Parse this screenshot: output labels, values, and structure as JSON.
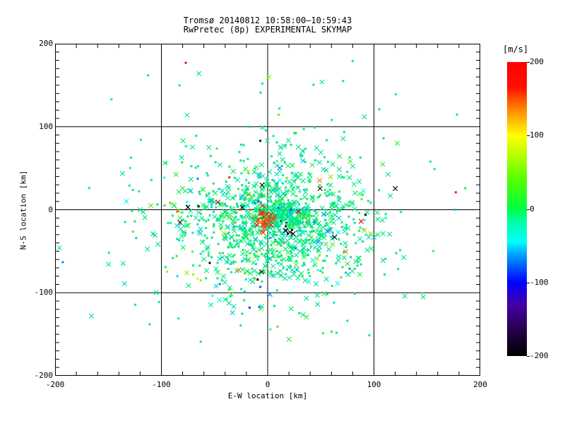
{
  "chart_data": {
    "type": "scatter",
    "title": "Tromsø 20140812 10:58:00–10:59:43",
    "subtitle": "RwPretec (8p) EXPERIMENTAL SKYMAP",
    "xlabel": "E-W location [km]",
    "ylabel": "N-S location [km]",
    "xlim": [
      -200,
      200
    ],
    "ylim": [
      -200,
      200
    ],
    "x_ticks": [
      -200,
      -100,
      0,
      100,
      200
    ],
    "y_ticks": [
      200,
      100,
      0,
      -100,
      -200
    ],
    "x_minor_step": 20,
    "y_minor_step": 10,
    "grid_lines": [
      -100,
      0,
      100
    ],
    "grid": "on",
    "marker": "x",
    "colorbar": {
      "label": "[m/s]",
      "ticks": [
        200,
        100,
        0,
        -100,
        -200
      ],
      "min": -200,
      "max": 200,
      "stops": [
        {
          "v": -200,
          "c": "#000000"
        },
        {
          "v": -160,
          "c": "#2B0057"
        },
        {
          "v": -130,
          "c": "#4400A8"
        },
        {
          "v": -100,
          "c": "#0000FF"
        },
        {
          "v": -60,
          "c": "#00AAFF"
        },
        {
          "v": -45,
          "c": "#00FFFF"
        },
        {
          "v": -15,
          "c": "#00FF99"
        },
        {
          "v": 0,
          "c": "#00FF44"
        },
        {
          "v": 40,
          "c": "#55FF00"
        },
        {
          "v": 75,
          "c": "#BBFF00"
        },
        {
          "v": 100,
          "c": "#FFFF00"
        },
        {
          "v": 135,
          "c": "#FF8800"
        },
        {
          "v": 165,
          "c": "#FF1100"
        },
        {
          "v": 200,
          "c": "#FF0000"
        }
      ]
    },
    "cloud_palette": [
      [
        "#00E97F",
        34
      ],
      [
        "#00E299",
        16
      ],
      [
        "#00F55C",
        14
      ],
      [
        "#16DFAC",
        9
      ],
      [
        "#00D4C4",
        6
      ],
      [
        "#33EA3E",
        5
      ],
      [
        "#55E830",
        3
      ],
      [
        "#00FFFF",
        2
      ],
      [
        "#00C8E8",
        2
      ],
      [
        "#0088FF",
        1
      ],
      [
        "#99E800",
        1
      ],
      [
        "#000000",
        0.6
      ],
      [
        "#FF7700",
        0.4
      ]
    ],
    "red_palette": [
      [
        "#FF2A00",
        5
      ],
      [
        "#FF4400",
        3
      ],
      [
        "#FF6600",
        2
      ],
      [
        "#E61A00",
        2
      ]
    ],
    "clusters": [
      {
        "name": "main-cloud",
        "count": 1050,
        "cx": 8,
        "cy": -15,
        "sx": 46,
        "sy": 42,
        "seed": 1234,
        "palette": "cloud_palette",
        "lg_ratio": 0.45
      },
      {
        "name": "dense-core",
        "count": 200,
        "cx": 15,
        "cy": -8,
        "sx": 13,
        "sy": 9,
        "seed": 77,
        "palette": "cloud_palette",
        "lg_ratio": 0.5
      },
      {
        "name": "halo",
        "count": 130,
        "cx": 0,
        "cy": -12,
        "sx": 88,
        "sy": 80,
        "seed": 99,
        "palette": "cloud_palette",
        "lg_ratio": 0.3
      },
      {
        "name": "red-patch",
        "count": 32,
        "cx": -3,
        "cy": -12,
        "sx": 4.5,
        "sy": 7,
        "seed": 55,
        "palette": "red_palette",
        "lg_ratio": 0.7
      }
    ],
    "notable_points": [
      {
        "x": -77,
        "y": 177,
        "c": "#EE0000",
        "s": "sm"
      },
      {
        "x": 1,
        "y": 160,
        "c": "#88EE00",
        "s": "lg"
      },
      {
        "x": -5,
        "y": 152,
        "c": "#00E6A0",
        "s": "sm"
      },
      {
        "x": -147,
        "y": 133,
        "c": "#00EB7D",
        "s": "sm"
      },
      {
        "x": 11,
        "y": 122,
        "c": "#00EB7D",
        "s": "sm"
      },
      {
        "x": -5,
        "y": 99,
        "c": "#00DFA5",
        "s": "lg"
      },
      {
        "x": 80,
        "y": 179,
        "c": "#00EB7D",
        "s": "sm"
      },
      {
        "x": 51,
        "y": 154,
        "c": "#00EB7D",
        "s": "lg"
      },
      {
        "x": 71,
        "y": 155,
        "c": "#00EB7D",
        "s": "sm"
      },
      {
        "x": 105,
        "y": 121,
        "c": "#00EB7D",
        "s": "sm"
      },
      {
        "x": 91,
        "y": 112,
        "c": "#00E59A",
        "s": "lg"
      },
      {
        "x": 122,
        "y": 80,
        "c": "#22EE22",
        "s": "lg"
      },
      {
        "x": 153,
        "y": 58,
        "c": "#00EB7D",
        "s": "sm"
      },
      {
        "x": 157,
        "y": 49,
        "c": "#00EB7D",
        "s": "sm"
      },
      {
        "x": 177,
        "y": 21,
        "c": "#FF0000",
        "s": "sm"
      },
      {
        "x": 176,
        "y": 0,
        "c": "#00CFEE",
        "s": "sm"
      },
      {
        "x": -120,
        "y": 0,
        "c": "#00EB7D",
        "s": "lg"
      },
      {
        "x": -110,
        "y": 5,
        "c": "#55E830",
        "s": "lg"
      },
      {
        "x": -97,
        "y": 5,
        "c": "#33E060",
        "s": "sm"
      },
      {
        "x": -90,
        "y": 7,
        "c": "#AAE000",
        "s": "lg"
      },
      {
        "x": -75,
        "y": 3,
        "c": "#000000",
        "s": "lg"
      },
      {
        "x": -65,
        "y": 4,
        "c": "#000000",
        "s": "sm"
      },
      {
        "x": -85,
        "y": -2,
        "c": "#FF5500",
        "s": "sm"
      },
      {
        "x": -47,
        "y": 9,
        "c": "#CC0000",
        "s": "lg"
      },
      {
        "x": -26,
        "y": 0,
        "c": "#FF4400",
        "s": "sm"
      },
      {
        "x": -16,
        "y": 0,
        "c": "#FF6600",
        "s": "sm"
      },
      {
        "x": 29,
        "y": -2,
        "c": "#BB0000",
        "s": "lg"
      },
      {
        "x": -125,
        "y": -14,
        "c": "#00E983",
        "s": "sm"
      },
      {
        "x": -108,
        "y": -29,
        "c": "#00E070",
        "s": "lg"
      },
      {
        "x": -196,
        "y": -46,
        "c": "#00EB7D",
        "s": "lg"
      },
      {
        "x": -63,
        "y": -53,
        "c": "#00E0DD",
        "s": "sm"
      },
      {
        "x": -45,
        "y": -59,
        "c": "#00D8C8",
        "s": "lg"
      },
      {
        "x": -76,
        "y": -76,
        "c": "#AAEE00",
        "s": "lg"
      },
      {
        "x": -70,
        "y": -78,
        "c": "#99EE00",
        "s": "sm"
      },
      {
        "x": -66,
        "y": -83,
        "c": "#DDEE00",
        "s": "sm"
      },
      {
        "x": -63,
        "y": -85,
        "c": "#88EE00",
        "s": "sm"
      },
      {
        "x": -85,
        "y": -80,
        "c": "#00D8E8",
        "s": "sm"
      },
      {
        "x": -12,
        "y": 8,
        "c": "#0077FF",
        "s": "sm"
      },
      {
        "x": -9,
        "y": 10,
        "c": "#7733CC",
        "s": "sm"
      },
      {
        "x": 10,
        "y": 2,
        "c": "#2255FF",
        "s": "sm"
      },
      {
        "x": 22,
        "y": 0,
        "c": "#0033CC",
        "s": "sm"
      },
      {
        "x": -7,
        "y": 83,
        "c": "#000000",
        "s": "sm"
      },
      {
        "x": -36,
        "y": 39,
        "c": "#EE2200",
        "s": "sm"
      },
      {
        "x": -18,
        "y": 47,
        "c": "#DDEE00",
        "s": "sm"
      },
      {
        "x": -17,
        "y": 18,
        "c": "#FF8800",
        "s": "sm"
      },
      {
        "x": -8,
        "y": 19,
        "c": "#88EE00",
        "s": "sm"
      },
      {
        "x": 33,
        "y": 59,
        "c": "#00BBFF",
        "s": "lg"
      },
      {
        "x": 17,
        "y": -25,
        "c": "#000000",
        "s": "lg"
      },
      {
        "x": 21,
        "y": -27,
        "c": "#000000",
        "s": "lg"
      },
      {
        "x": 24,
        "y": -29,
        "c": "#000000",
        "s": "lg"
      },
      {
        "x": 19,
        "y": -29,
        "c": "#000000",
        "s": "sm"
      },
      {
        "x": 23,
        "y": -24,
        "c": "#000000",
        "s": "sm"
      },
      {
        "x": 17,
        "y": -20,
        "c": "#000000",
        "s": "sm"
      },
      {
        "x": 88,
        "y": -14,
        "c": "#EE0000",
        "s": "lg"
      },
      {
        "x": 63,
        "y": -33,
        "c": "#000000",
        "s": "lg"
      },
      {
        "x": 92,
        "y": -6,
        "c": "#000000",
        "s": "sm"
      },
      {
        "x": 91,
        "y": -25,
        "c": "#AADD00",
        "s": "lg"
      },
      {
        "x": 97,
        "y": -29,
        "c": "#99DD00",
        "s": "lg"
      },
      {
        "x": 95,
        "y": -33,
        "c": "#00DDDD",
        "s": "lg"
      },
      {
        "x": 100,
        "y": -33,
        "c": "#00D8B8",
        "s": "lg"
      },
      {
        "x": 58,
        "y": -25,
        "c": "#2299FF",
        "s": "lg"
      },
      {
        "x": 129,
        "y": -104,
        "c": "#00DDAA",
        "s": "lg"
      },
      {
        "x": 47,
        "y": -114,
        "c": "#00DDAA",
        "s": "lg"
      },
      {
        "x": 110,
        "y": -78,
        "c": "#00E070",
        "s": "sm"
      },
      {
        "x": 82,
        "y": -101,
        "c": "#00E070",
        "s": "sm"
      },
      {
        "x": -7,
        "y": -93,
        "c": "#0055EE",
        "s": "sm"
      },
      {
        "x": -17,
        "y": -118,
        "c": "#0033DD",
        "s": "sm"
      },
      {
        "x": -8,
        "y": -117,
        "c": "#0066FF",
        "s": "sm"
      },
      {
        "x": -111,
        "y": -138,
        "c": "#00DBA8",
        "s": "sm"
      },
      {
        "x": -63,
        "y": -159,
        "c": "#00DBA8",
        "s": "sm"
      }
    ]
  }
}
